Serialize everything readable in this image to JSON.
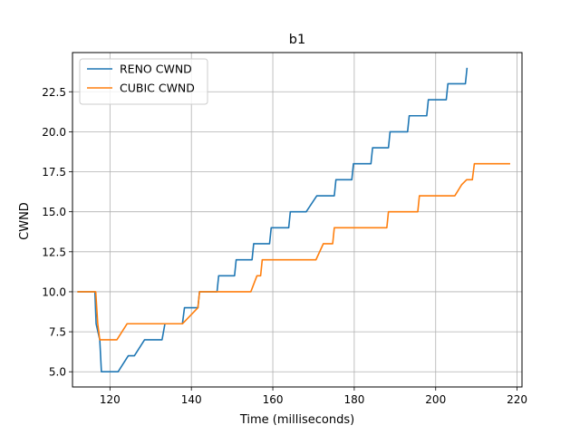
{
  "chart_data": {
    "type": "line",
    "title": "b1",
    "xlabel": "Time (milliseconds)",
    "ylabel": "CWND",
    "xlim": [
      110.8,
      221.2
    ],
    "ylim": [
      4.05,
      24.95
    ],
    "xticks": [
      120,
      140,
      160,
      180,
      200,
      220
    ],
    "yticks": [
      5.0,
      7.5,
      10.0,
      12.5,
      15.0,
      17.5,
      20.0,
      22.5
    ],
    "grid": true,
    "legend_position": "top-left",
    "series": [
      {
        "name": "RENO CWND",
        "color": "#1f77b4",
        "x": [
          112,
          116.3,
          116.6,
          117.5,
          117.9,
          122.0,
          124.5,
          125.5,
          126.0,
          128.5,
          129.0,
          132.8,
          133.5,
          137.8,
          138.3,
          141.6,
          142.0,
          146.3,
          146.7,
          150.6,
          151.0,
          154.9,
          155.3,
          159.2,
          159.6,
          163.9,
          164.3,
          168.2,
          170.8,
          175.1,
          175.5,
          179.4,
          179.8,
          184.1,
          184.5,
          188.4,
          188.8,
          193.1,
          193.5,
          197.8,
          198.2,
          202.6,
          203.0,
          207.3,
          207.7
        ],
        "y": [
          10,
          10,
          8,
          7,
          5,
          5,
          6,
          6,
          6,
          7,
          7,
          7,
          8,
          8,
          9,
          9,
          10,
          10,
          11,
          11,
          12,
          12,
          13,
          13,
          14,
          14,
          15,
          15,
          16,
          16,
          17,
          17,
          18,
          18,
          19,
          19,
          20,
          20,
          21,
          21,
          22,
          22,
          23,
          23,
          24
        ]
      },
      {
        "name": "CUBIC CWND",
        "color": "#ff7f0e",
        "x": [
          112,
          116.5,
          117.0,
          117.5,
          121.7,
          124.2,
          137.8,
          141.6,
          142.0,
          154.6,
          156.1,
          157.0,
          157.4,
          170.6,
          172.4,
          173.8,
          174.7,
          175.1,
          188.0,
          188.4,
          195.6,
          196.0,
          204.7,
          206.4,
          207.6,
          209.0,
          209.5,
          218.3
        ],
        "y": [
          10,
          10,
          8,
          7,
          7,
          8,
          8,
          9,
          10,
          10,
          11,
          11,
          12,
          12,
          13,
          13,
          13,
          14,
          14,
          15,
          15,
          16,
          16,
          16.7,
          17,
          17,
          18,
          18
        ]
      }
    ]
  }
}
